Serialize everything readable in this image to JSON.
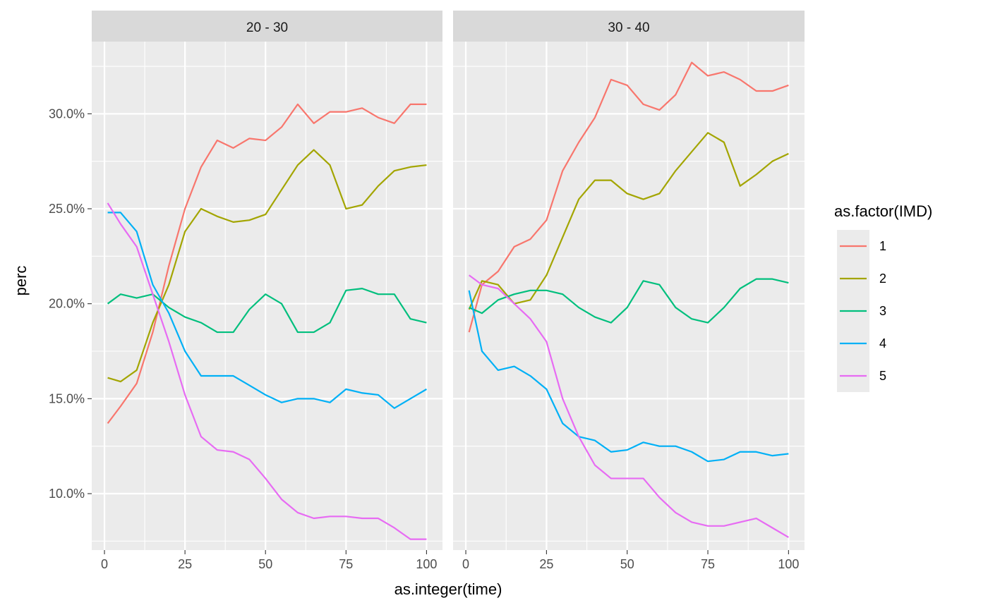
{
  "chart_data": {
    "type": "line",
    "xlabel": "as.integer(time)",
    "ylabel": "perc",
    "xlim": [
      -3.95,
      104.95
    ],
    "ylim": [
      0.0703,
      0.338
    ],
    "x_ticks": [
      0,
      25,
      50,
      75,
      100
    ],
    "x_tick_labels": [
      "0",
      "25",
      "50",
      "75",
      "100"
    ],
    "y_ticks": [
      0.1,
      0.15,
      0.2,
      0.25,
      0.3
    ],
    "y_tick_labels": [
      "10.0%",
      "15.0%",
      "20.0%",
      "25.0%",
      "30.0%"
    ],
    "grid": true,
    "legend": {
      "title": "as.factor(IMD)",
      "position": "right",
      "entries": [
        "1",
        "2",
        "3",
        "4",
        "5"
      ]
    },
    "colors": {
      "1": "#F8766D",
      "2": "#A3A500",
      "3": "#00BF7D",
      "4": "#00B0F6",
      "5": "#E76BF3"
    },
    "panels": [
      {
        "label": "20 - 30",
        "x": [
          1,
          5,
          10,
          15,
          20,
          25,
          30,
          35,
          40,
          45,
          50,
          55,
          60,
          65,
          70,
          75,
          80,
          85,
          90,
          95,
          100
        ],
        "series": [
          {
            "name": "1",
            "values": [
              0.137,
              0.146,
              0.158,
              0.185,
              0.22,
              0.25,
              0.272,
              0.286,
              0.282,
              0.287,
              0.286,
              0.293,
              0.305,
              0.295,
              0.301,
              0.301,
              0.303,
              0.298,
              0.295,
              0.305,
              0.305
            ]
          },
          {
            "name": "2",
            "values": [
              0.161,
              0.159,
              0.165,
              0.19,
              0.21,
              0.238,
              0.25,
              0.246,
              0.243,
              0.244,
              0.247,
              0.26,
              0.273,
              0.281,
              0.273,
              0.25,
              0.252,
              0.262,
              0.27,
              0.272,
              0.273
            ]
          },
          {
            "name": "3",
            "values": [
              0.2,
              0.205,
              0.203,
              0.205,
              0.198,
              0.193,
              0.19,
              0.185,
              0.185,
              0.197,
              0.205,
              0.2,
              0.185,
              0.185,
              0.19,
              0.207,
              0.208,
              0.205,
              0.205,
              0.192,
              0.19
            ]
          },
          {
            "name": "4",
            "values": [
              0.248,
              0.248,
              0.238,
              0.21,
              0.195,
              0.175,
              0.162,
              0.162,
              0.162,
              0.157,
              0.152,
              0.148,
              0.15,
              0.15,
              0.148,
              0.155,
              0.153,
              0.152,
              0.145,
              0.15,
              0.155
            ]
          },
          {
            "name": "5",
            "values": [
              0.253,
              0.242,
              0.23,
              0.205,
              0.18,
              0.152,
              0.13,
              0.123,
              0.122,
              0.118,
              0.108,
              0.097,
              0.09,
              0.087,
              0.088,
              0.088,
              0.087,
              0.087,
              0.082,
              0.076,
              0.076
            ]
          }
        ]
      },
      {
        "label": "30 - 40",
        "x": [
          1,
          5,
          10,
          15,
          20,
          25,
          30,
          35,
          40,
          45,
          50,
          55,
          60,
          65,
          70,
          75,
          80,
          85,
          90,
          95,
          100
        ],
        "series": [
          {
            "name": "1",
            "values": [
              0.185,
              0.21,
              0.217,
              0.23,
              0.234,
              0.244,
              0.27,
              0.285,
              0.298,
              0.318,
              0.315,
              0.305,
              0.302,
              0.31,
              0.327,
              0.32,
              0.322,
              0.318,
              0.312,
              0.312,
              0.315
            ]
          },
          {
            "name": "2",
            "values": [
              0.197,
              0.212,
              0.21,
              0.2,
              0.202,
              0.215,
              0.235,
              0.255,
              0.265,
              0.265,
              0.258,
              0.255,
              0.258,
              0.27,
              0.28,
              0.29,
              0.285,
              0.262,
              0.268,
              0.275,
              0.279
            ]
          },
          {
            "name": "3",
            "values": [
              0.198,
              0.195,
              0.202,
              0.205,
              0.207,
              0.207,
              0.205,
              0.198,
              0.193,
              0.19,
              0.198,
              0.212,
              0.21,
              0.198,
              0.192,
              0.19,
              0.198,
              0.208,
              0.213,
              0.213,
              0.211
            ]
          },
          {
            "name": "4",
            "values": [
              0.207,
              0.175,
              0.165,
              0.167,
              0.162,
              0.155,
              0.137,
              0.13,
              0.128,
              0.122,
              0.123,
              0.127,
              0.125,
              0.125,
              0.122,
              0.117,
              0.118,
              0.122,
              0.122,
              0.12,
              0.121
            ]
          },
          {
            "name": "5",
            "values": [
              0.215,
              0.21,
              0.208,
              0.2,
              0.192,
              0.18,
              0.15,
              0.13,
              0.115,
              0.108,
              0.108,
              0.108,
              0.098,
              0.09,
              0.085,
              0.083,
              0.083,
              0.085,
              0.087,
              0.082,
              0.077
            ]
          }
        ]
      }
    ]
  }
}
